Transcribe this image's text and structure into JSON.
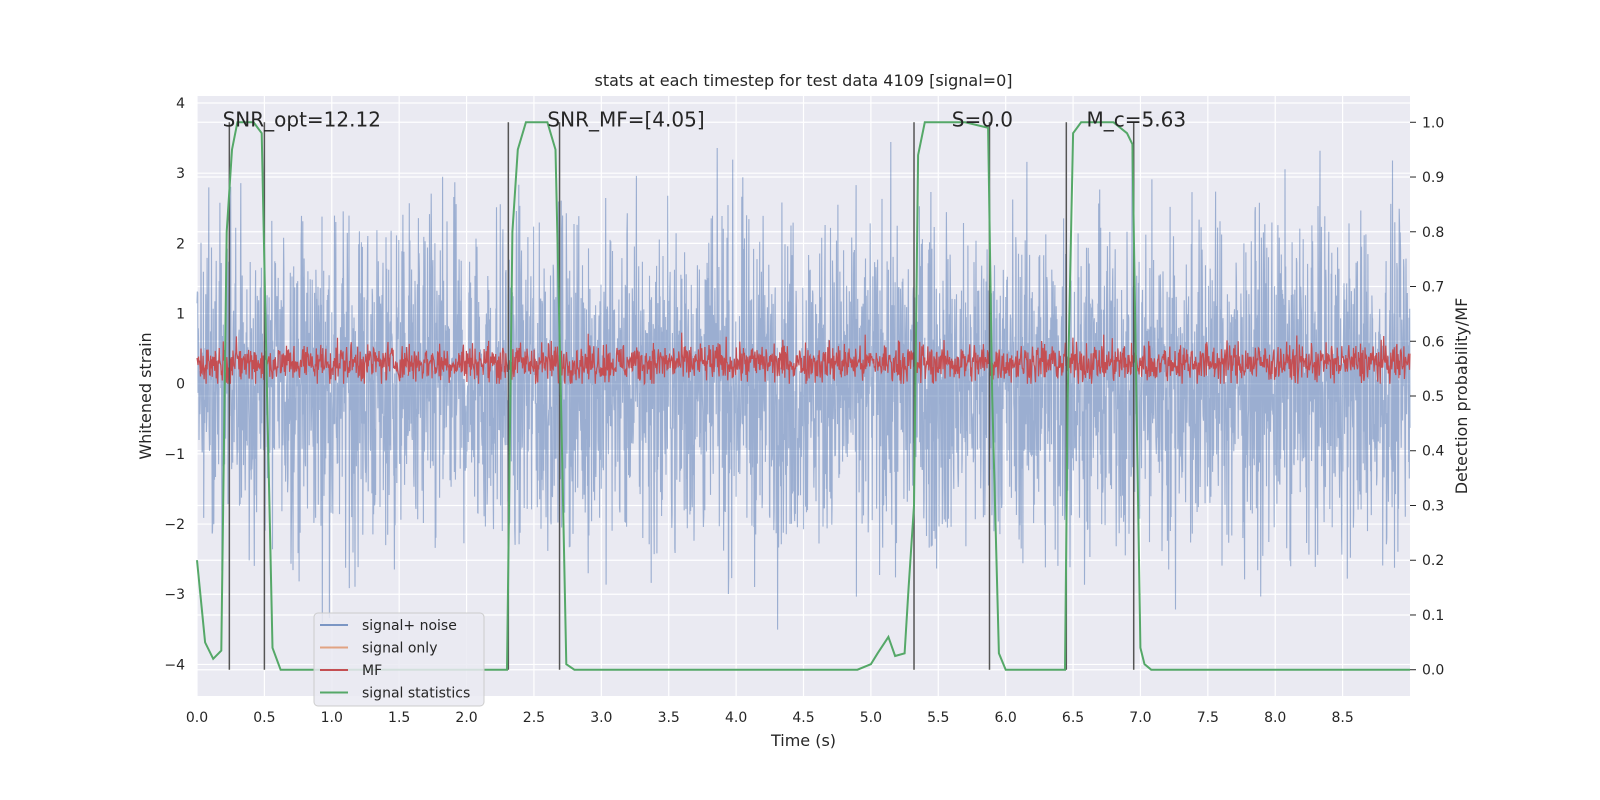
{
  "chart_data": {
    "type": "line",
    "title": "stats at each timestep for test data 4109 [signal=0]",
    "xlabel": "Time (s)",
    "ylabel": "Whitened strain",
    "y2label": "Detection probability/MF",
    "xlim": [
      0,
      9.0
    ],
    "ylim": [
      -4.45,
      4.1
    ],
    "y2lim": [
      -0.048,
      1.048
    ],
    "xticks": [
      "0.0",
      "0.5",
      "1.0",
      "1.5",
      "2.0",
      "2.5",
      "3.0",
      "3.5",
      "4.0",
      "4.5",
      "5.0",
      "5.5",
      "6.0",
      "6.5",
      "7.0",
      "7.5",
      "8.0",
      "8.5"
    ],
    "yticks": [
      "−4",
      "−3",
      "−2",
      "−1",
      "0",
      "1",
      "2",
      "3",
      "4"
    ],
    "y2ticks": [
      "0.0",
      "0.1",
      "0.2",
      "0.3",
      "0.4",
      "0.5",
      "0.6",
      "0.7",
      "0.8",
      "0.9",
      "1.0"
    ],
    "grid": true,
    "legend_position": "lower-left",
    "colors": {
      "signal_noise": "#4c72b0",
      "signal_only": "#dd8452",
      "mf": "#c44e52",
      "signal_statistics": "#55a868",
      "vlines": "#555555",
      "background": "#eaeaf2"
    },
    "annotations": [
      {
        "text": "SNR_opt=12.12",
        "x": 0.19,
        "y": 3.75
      },
      {
        "text": "SNR_MF=[4.05]",
        "x": 2.6,
        "y": 3.75
      },
      {
        "text": "S=0.0",
        "x": 5.6,
        "y": 3.75
      },
      {
        "text": "M_c=5.63",
        "x": 6.6,
        "y": 3.75
      }
    ],
    "vertical_lines_x": [
      0.24,
      0.5,
      2.31,
      2.69,
      5.32,
      5.88,
      6.45,
      6.95
    ],
    "series": [
      {
        "name": "signal+ noise",
        "description_values": "dense white-noise strain, samples within approx -4 to 4",
        "amplitude_range": [
          -4.0,
          4.0
        ]
      },
      {
        "name": "signal only",
        "values": []
      },
      {
        "name": "MF",
        "amplitude_range": [
          0.0,
          1.0
        ],
        "mean": 0.3
      },
      {
        "name": "signal statistics",
        "axis": "right",
        "x": [
          0.0,
          0.06,
          0.12,
          0.18,
          0.22,
          0.26,
          0.3,
          0.36,
          0.42,
          0.48,
          0.52,
          0.56,
          0.62,
          0.7,
          0.8,
          1.0,
          1.5,
          2.0,
          2.2,
          2.3,
          2.34,
          2.38,
          2.44,
          2.5,
          2.6,
          2.66,
          2.7,
          2.74,
          2.8,
          3.0,
          3.5,
          4.0,
          4.5,
          4.9,
          5.0,
          5.05,
          5.13,
          5.18,
          5.25,
          5.28,
          5.32,
          5.35,
          5.4,
          5.46,
          5.55,
          5.7,
          5.87,
          5.9,
          5.95,
          6.0,
          6.05,
          6.15,
          6.3,
          6.44,
          6.46,
          6.5,
          6.56,
          6.6,
          6.7,
          6.8,
          6.9,
          6.94,
          6.97,
          7.0,
          7.03,
          7.08,
          7.15,
          7.3,
          7.5,
          8.0,
          8.5,
          9.0
        ],
        "y": [
          0.2,
          0.05,
          0.02,
          0.035,
          0.8,
          0.95,
          1.0,
          1.0,
          1.0,
          0.98,
          0.5,
          0.04,
          0.0,
          0.0,
          0.0,
          0.0,
          0.0,
          0.0,
          0.0,
          0.0,
          0.8,
          0.95,
          1.0,
          1.0,
          1.0,
          0.95,
          0.5,
          0.01,
          0.0,
          0.0,
          0.0,
          0.0,
          0.0,
          0.0,
          0.01,
          0.03,
          0.06,
          0.025,
          0.03,
          0.15,
          0.3,
          0.94,
          1.0,
          1.0,
          1.0,
          1.0,
          0.99,
          0.5,
          0.03,
          0.0,
          0.0,
          0.0,
          0.0,
          0.0,
          0.5,
          0.98,
          1.0,
          1.0,
          1.0,
          1.0,
          0.98,
          0.96,
          0.5,
          0.04,
          0.01,
          0.0,
          0.0,
          0.0,
          0.0,
          0.0,
          0.0,
          0.0
        ]
      }
    ]
  }
}
